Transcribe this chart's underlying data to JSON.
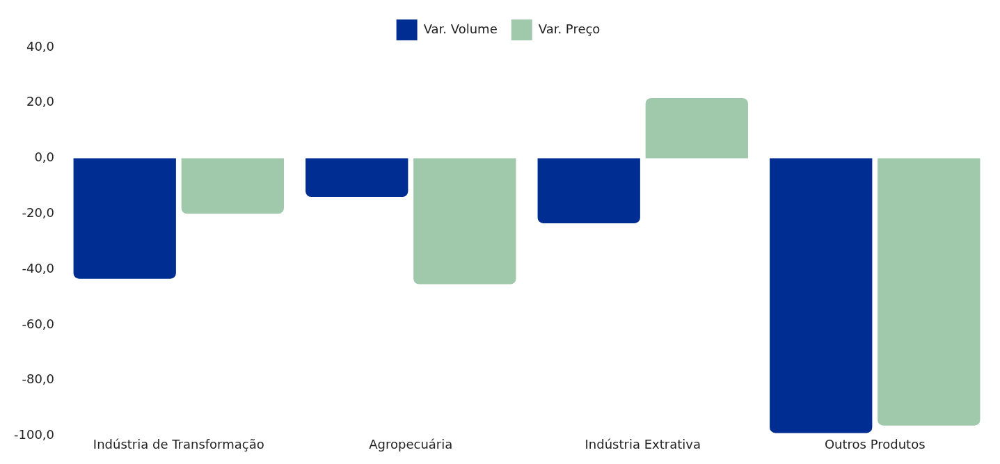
{
  "chart_data": {
    "type": "bar",
    "categories": [
      "Indústria de Transformação",
      "Agropecuária",
      "Indústria Extrativa",
      "Outros Produtos"
    ],
    "series": [
      {
        "name": "Var. Volume",
        "color": "#002d91",
        "values": [
          -43.4,
          -13.9,
          -23.4,
          -99.0
        ]
      },
      {
        "name": "Var. Preço",
        "color": "#a0c8aa",
        "values": [
          -20.0,
          -45.4,
          21.7,
          -96.3
        ]
      }
    ],
    "ylim": [
      -100,
      40
    ],
    "yticks": [
      {
        "value": -100,
        "label": "-100,0"
      },
      {
        "value": -80,
        "label": "-80,0"
      },
      {
        "value": -60,
        "label": "-60,0"
      },
      {
        "value": -40,
        "label": "-40,0"
      },
      {
        "value": -20,
        "label": "-20,0"
      },
      {
        "value": 0,
        "label": "0,0"
      },
      {
        "value": 20,
        "label": "20,0"
      },
      {
        "value": 40,
        "label": "40,0"
      }
    ],
    "grid": false,
    "legend": "top"
  }
}
